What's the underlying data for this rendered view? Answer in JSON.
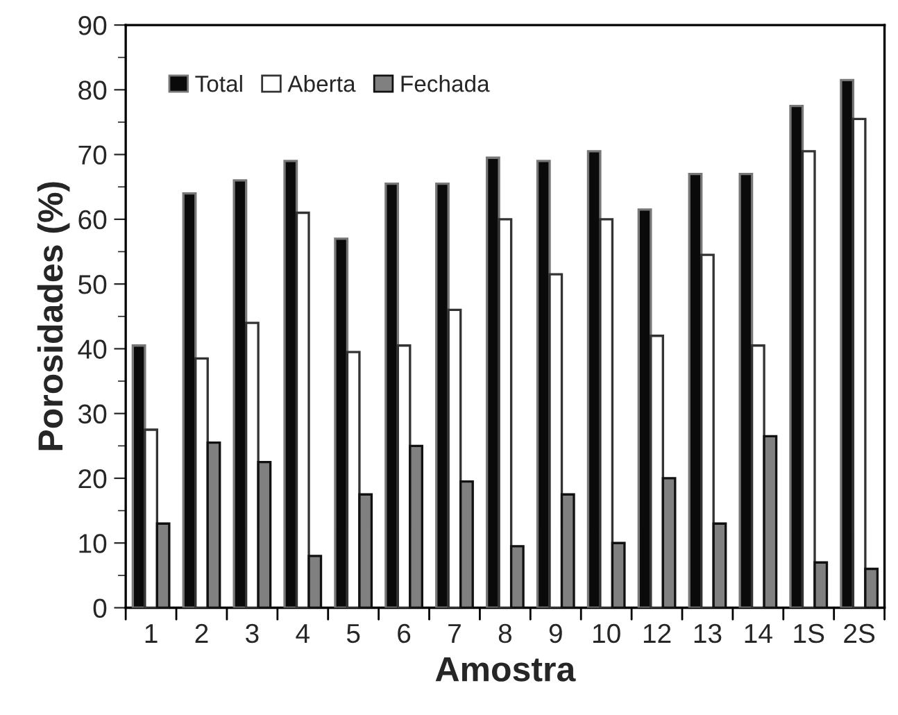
{
  "chart_data": {
    "type": "bar",
    "xlabel": "Amostra",
    "ylabel": "Porosidades (%)",
    "categories": [
      "1",
      "2",
      "3",
      "4",
      "5",
      "6",
      "7",
      "8",
      "9",
      "10",
      "12",
      "13",
      "14",
      "1S",
      "2S"
    ],
    "series": [
      {
        "name": "Total",
        "color": "#0a0a0a",
        "values": [
          40.5,
          64,
          66,
          69,
          57,
          65.5,
          65.5,
          69.5,
          69,
          70.5,
          61.5,
          67,
          67,
          77.5,
          81.5
        ]
      },
      {
        "name": "Aberta",
        "color": "#ffffff",
        "values": [
          27.5,
          38.5,
          44,
          61,
          39.5,
          40.5,
          46,
          60,
          51.5,
          60,
          42,
          54.5,
          40.5,
          70.5,
          75.5
        ]
      },
      {
        "name": "Fechada",
        "color": "#808080",
        "values": [
          13,
          25.5,
          22.5,
          8,
          17.5,
          25,
          19.5,
          9.5,
          17.5,
          10,
          20,
          13,
          26.5,
          7,
          6
        ]
      }
    ],
    "ylim": [
      0,
      90
    ],
    "yticks": [
      0,
      10,
      20,
      30,
      40,
      50,
      60,
      70,
      80,
      90
    ],
    "grid": false,
    "legend": "top left"
  }
}
